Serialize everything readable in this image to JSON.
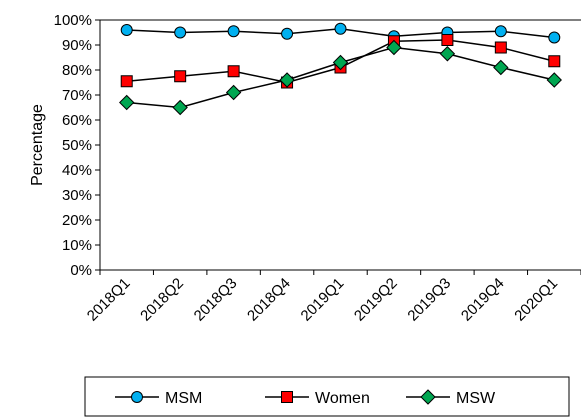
{
  "chart_data": {
    "type": "line",
    "categories": [
      "2018Q1",
      "2018Q2",
      "2018Q3",
      "2018Q4",
      "2019Q1",
      "2019Q2",
      "2019Q3",
      "2019Q4",
      "2020Q1"
    ],
    "series": [
      {
        "name": "MSM",
        "marker": "circle",
        "color": "#00B0F0",
        "values": [
          96,
          95,
          95.5,
          94.5,
          96.5,
          93.5,
          95,
          95.5,
          93
        ]
      },
      {
        "name": "Women",
        "marker": "square",
        "color": "#FF0000",
        "values": [
          75.5,
          77.5,
          79.5,
          75,
          81,
          91.5,
          92,
          89,
          83.5
        ]
      },
      {
        "name": "MSW",
        "marker": "diamond",
        "color": "#00A651",
        "values": [
          67,
          65,
          71,
          76,
          83,
          89,
          86.5,
          81,
          76
        ]
      }
    ],
    "yticks": [
      "0%",
      "10%",
      "20%",
      "30%",
      "40%",
      "50%",
      "60%",
      "70%",
      "80%",
      "90%",
      "100%"
    ],
    "title": "",
    "xlabel": "",
    "ylabel": "Percentage",
    "ylim": [
      0,
      100
    ],
    "grid": false,
    "legend_position": "bottom"
  }
}
